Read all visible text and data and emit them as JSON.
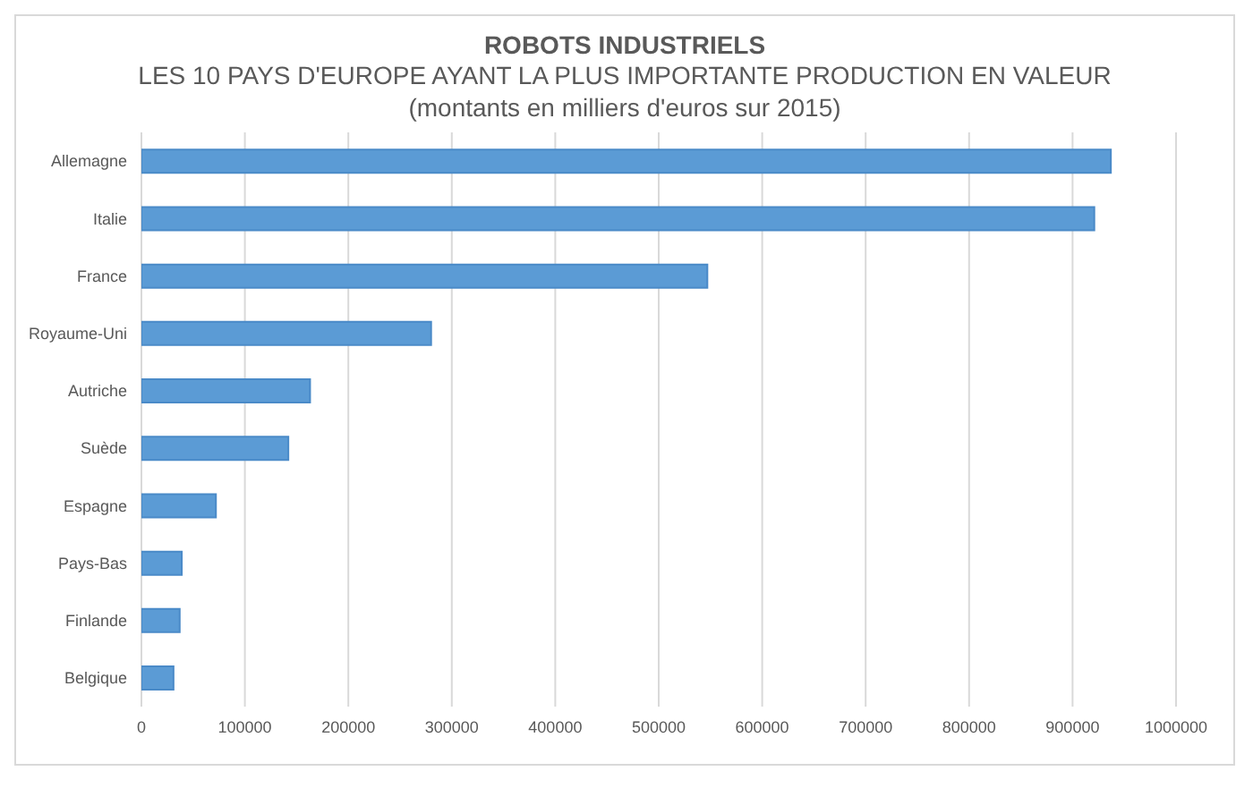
{
  "chart_data": {
    "type": "bar",
    "orientation": "horizontal",
    "title": "ROBOTS INDUSTRIELS",
    "subtitle": "LES 10 PAYS D'EUROPE AYANT LA PLUS IMPORTANTE PRODUCTION EN VALEUR\n(montants en milliers d'euros sur 2015)",
    "categories": [
      "Allemagne",
      "Italie",
      "France",
      "Royaume-Uni",
      "Autriche",
      "Suède",
      "Espagne",
      "Pays-Bas",
      "Finlande",
      "Belgique"
    ],
    "values": [
      937000,
      921000,
      547000,
      280000,
      163000,
      142000,
      72000,
      39000,
      37000,
      31000
    ],
    "color": "#5b9bd5",
    "xlim": [
      0,
      1000000
    ],
    "xticks": [
      0,
      100000,
      200000,
      300000,
      400000,
      500000,
      600000,
      700000,
      800000,
      900000,
      1000000
    ],
    "grid": "x"
  }
}
